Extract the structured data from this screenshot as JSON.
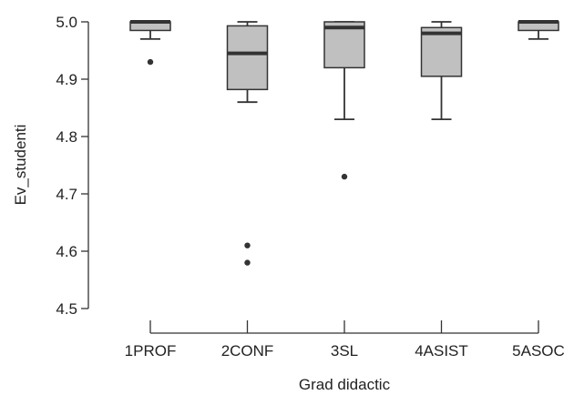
{
  "chart_data": {
    "type": "boxplot",
    "xlabel": "Grad  didactic",
    "ylabel": "Ev_studenti",
    "ylim": [
      4.5,
      5.0
    ],
    "yticks": [
      "4.5",
      "4.6",
      "4.7",
      "4.8",
      "4.9",
      "5.0"
    ],
    "categories": [
      "1PROF",
      "2CONF",
      "3SL",
      "4ASIST",
      "5ASOC"
    ],
    "boxes": [
      {
        "category": "1PROF",
        "whisker_low": 4.97,
        "q1": 4.985,
        "median": 5.0,
        "q3": 5.0,
        "whisker_high": 5.0,
        "outliers": [
          4.93
        ]
      },
      {
        "category": "2CONF",
        "whisker_low": 4.86,
        "q1": 4.882,
        "median": 4.945,
        "q3": 4.993,
        "whisker_high": 5.0,
        "outliers": [
          4.61,
          4.58
        ]
      },
      {
        "category": "3SL",
        "whisker_low": 4.83,
        "q1": 4.92,
        "median": 4.99,
        "q3": 5.0,
        "whisker_high": 5.0,
        "outliers": [
          4.73
        ]
      },
      {
        "category": "4ASIST",
        "whisker_low": 4.83,
        "q1": 4.905,
        "median": 4.98,
        "q3": 4.99,
        "whisker_high": 5.0,
        "outliers": []
      },
      {
        "category": "5ASOC",
        "whisker_low": 4.97,
        "q1": 4.985,
        "median": 5.0,
        "q3": 5.0,
        "whisker_high": 5.0,
        "outliers": []
      }
    ],
    "colors": {
      "box_fill": "#c0c0c0",
      "stroke": "#333333",
      "text": "#222222"
    },
    "grid": false,
    "legend": "none"
  }
}
